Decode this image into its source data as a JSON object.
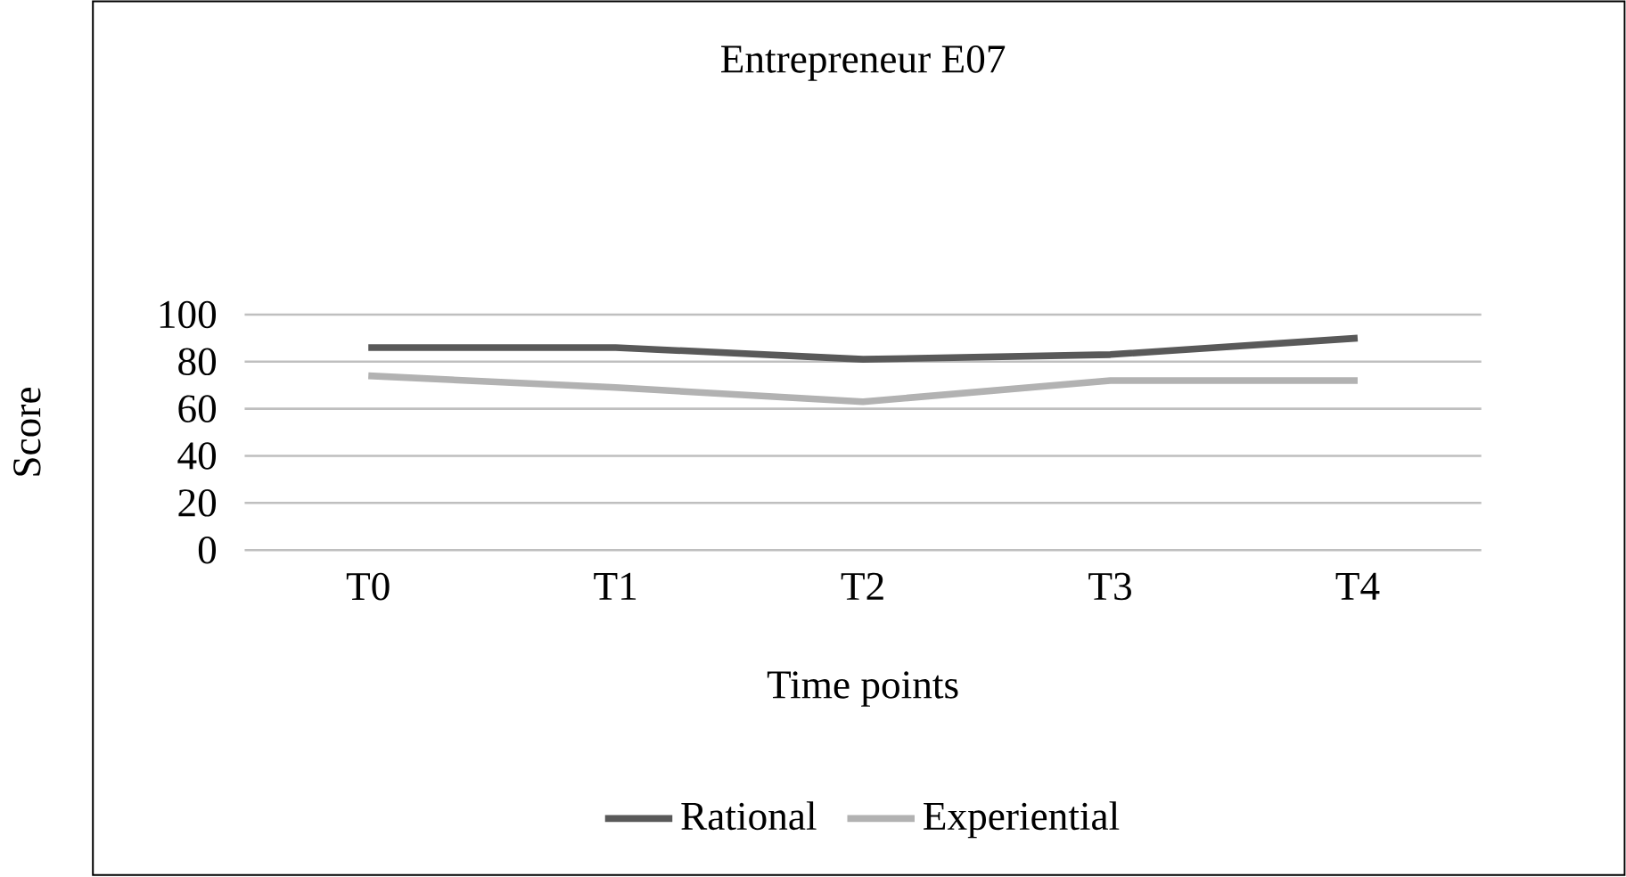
{
  "chart_data": {
    "type": "line",
    "title": "Entrepreneur E07",
    "xlabel": "Time points",
    "ylabel": "Score",
    "categories": [
      "T0",
      "T1",
      "T2",
      "T3",
      "T4"
    ],
    "series": [
      {
        "name": "Rational",
        "color": "#595959",
        "values": [
          86,
          86,
          81,
          83,
          90
        ]
      },
      {
        "name": "Experiential",
        "color": "#b2b2b2",
        "values": [
          74,
          69,
          63,
          72,
          72
        ]
      }
    ],
    "ylim": [
      0,
      100
    ],
    "yticks": [
      0,
      20,
      40,
      60,
      80,
      100
    ],
    "grid": "y",
    "legend": "bottom",
    "marker": "none",
    "line_style": "solid"
  }
}
